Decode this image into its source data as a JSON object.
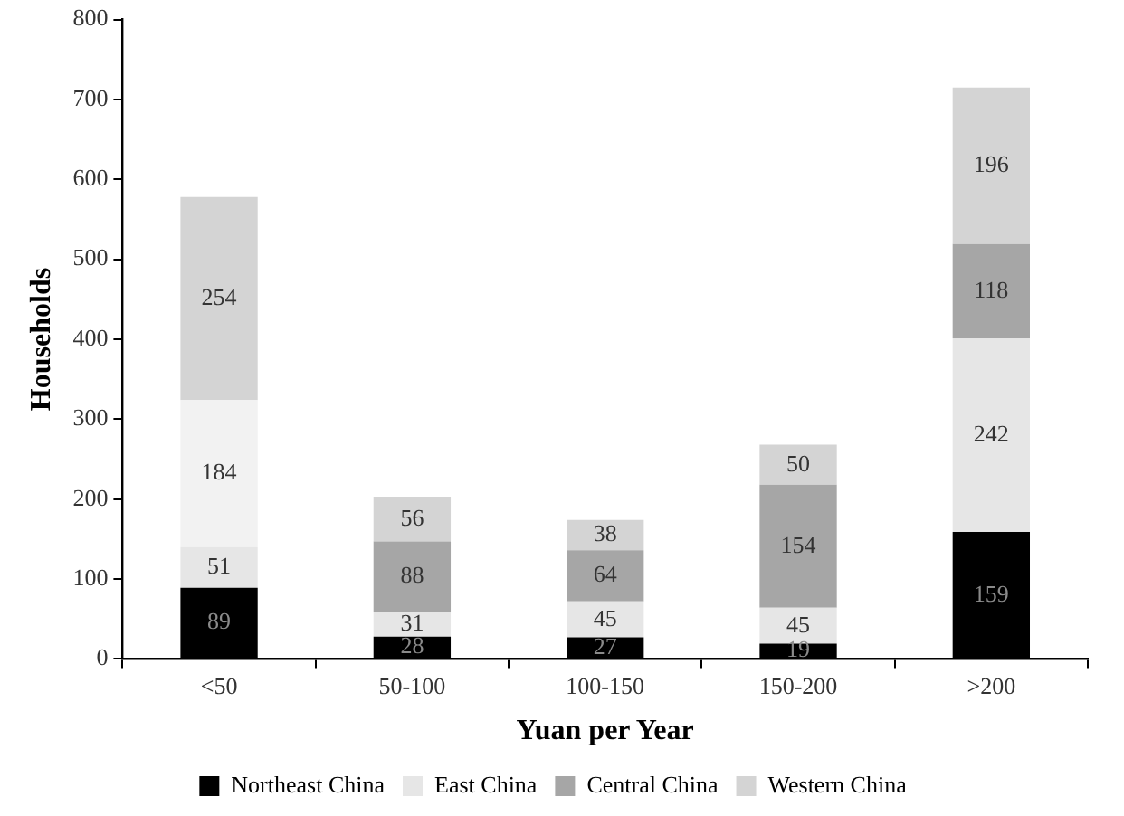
{
  "chart_data": {
    "type": "bar",
    "stacked": true,
    "xlabel": "Yuan per Year",
    "ylabel": "Households",
    "categories": [
      "<50",
      "50-100",
      "100-150",
      "150-200",
      ">200"
    ],
    "series": [
      {
        "name": "Northeast China",
        "color": "#000000",
        "values": [
          89,
          28,
          27,
          19,
          159
        ]
      },
      {
        "name": "East China",
        "color": "#e6e6e6",
        "values": [
          51,
          31,
          45,
          45,
          242
        ]
      },
      {
        "name": "Central China",
        "color": "#a6a6a6",
        "colors": [
          "#f2f2f2",
          "#a6a6a6",
          "#a6a6a6",
          "#a6a6a6",
          "#a6a6a6"
        ],
        "values": [
          184,
          88,
          64,
          154,
          118
        ]
      },
      {
        "name": "Western China",
        "color": "#d4d4d4",
        "values": [
          254,
          56,
          38,
          50,
          196
        ]
      }
    ],
    "ylim": [
      0,
      800
    ],
    "yticks": [
      0,
      100,
      200,
      300,
      400,
      500,
      600,
      700,
      800
    ],
    "data_labels": true,
    "grid": false,
    "legend": "bottom"
  }
}
